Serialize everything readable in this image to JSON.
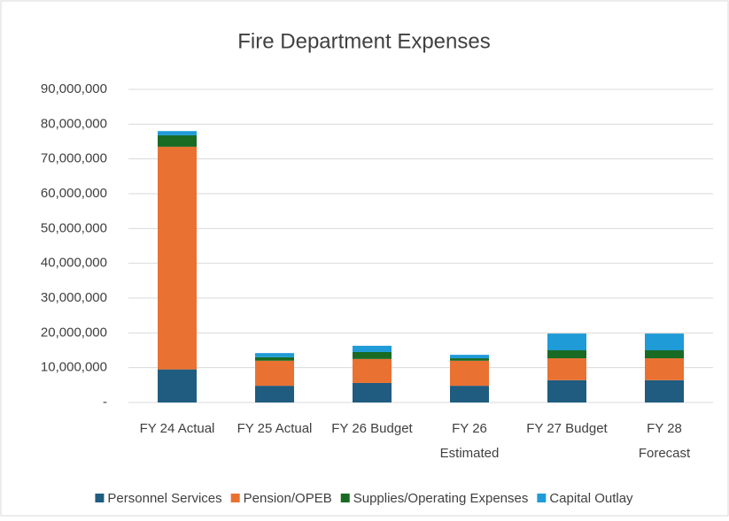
{
  "chart_data": {
    "type": "stacked_bar",
    "title": "Fire Department Expenses",
    "categories": [
      "FY 24 Actual",
      "FY 25 Actual",
      "FY 26 Budget",
      "FY 26 Estimated",
      "FY 27 Budget",
      "FY 28 Forecast"
    ],
    "series": [
      {
        "name": "Personnel Services",
        "color": "#1f5c80",
        "values": [
          9500000,
          4800000,
          5600000,
          4800000,
          6400000,
          6400000
        ]
      },
      {
        "name": "Pension/OPEB",
        "color": "#e97132",
        "values": [
          64000000,
          7200000,
          6900000,
          7200000,
          6300000,
          6300000
        ]
      },
      {
        "name": "Supplies/Operating Expenses",
        "color": "#196b24",
        "values": [
          3300000,
          1000000,
          2000000,
          700000,
          2300000,
          2300000
        ]
      },
      {
        "name": "Capital Outlay",
        "color": "#1f9bd7",
        "values": [
          1200000,
          1200000,
          1800000,
          1000000,
          4800000,
          4800000
        ]
      }
    ],
    "ylim": [
      0,
      90000000
    ],
    "yticks": [
      {
        "value": 0,
        "label": "-"
      },
      {
        "value": 10000000,
        "label": "10,000,000"
      },
      {
        "value": 20000000,
        "label": "20,000,000"
      },
      {
        "value": 30000000,
        "label": "30,000,000"
      },
      {
        "value": 40000000,
        "label": "40,000,000"
      },
      {
        "value": 50000000,
        "label": "50,000,000"
      },
      {
        "value": 60000000,
        "label": "60,000,000"
      },
      {
        "value": 70000000,
        "label": "70,000,000"
      },
      {
        "value": 80000000,
        "label": "80,000,000"
      },
      {
        "value": 90000000,
        "label": "90,000,000"
      }
    ],
    "grid": true,
    "legend": "bottom"
  }
}
